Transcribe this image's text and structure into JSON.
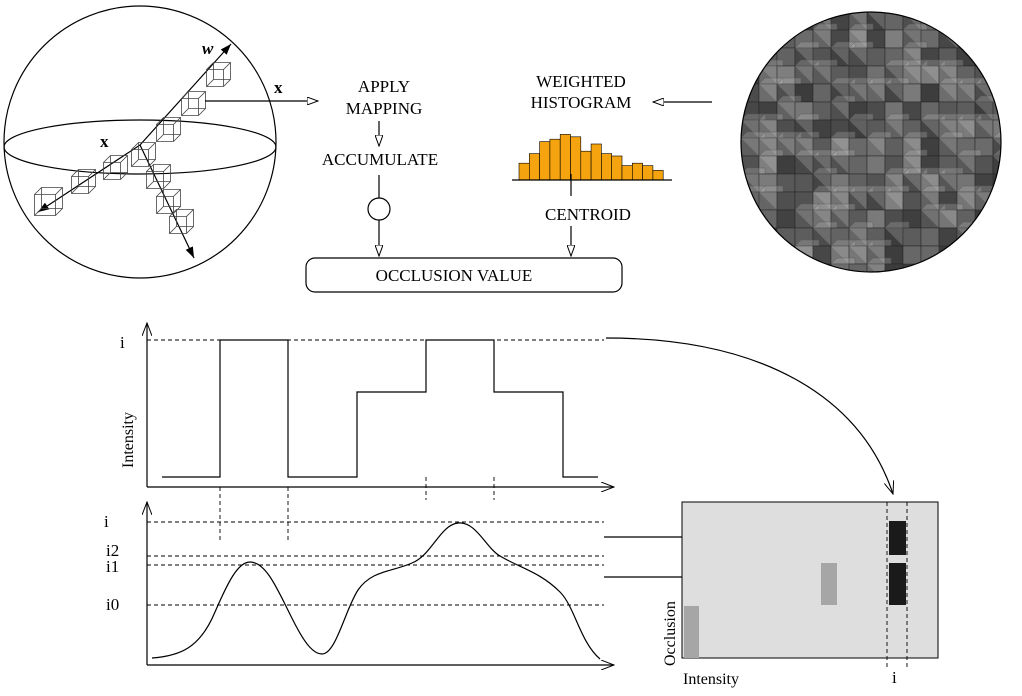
{
  "labels": {
    "w": "w",
    "x_arrow": "x",
    "x_point": "x",
    "apply_mapping_line1": "APPLY",
    "apply_mapping_line2": "MAPPING",
    "accumulate": "ACCUMULATE",
    "weighted_histogram_line1": "WEIGHTED",
    "weighted_histogram_line2": "HISTOGRAM",
    "centroid": "CENTROID",
    "occlusion_value": "OCCLUSION   VALUE"
  },
  "top_profile": {
    "ylabel": "Intensity",
    "level_label": "i"
  },
  "bottom_profile": {
    "level_labels": [
      "i",
      "i2",
      "i1",
      "i0"
    ]
  },
  "occlusion_map": {
    "xlabel": "Intensity",
    "ylabel": "Occlusion",
    "marker_label": "i"
  },
  "histogram": {
    "bar_color": "#F5A30F",
    "bars": [
      0.35,
      0.55,
      0.8,
      0.85,
      0.95,
      0.9,
      0.6,
      0.75,
      0.55,
      0.5,
      0.3,
      0.35,
      0.3,
      0.2
    ]
  },
  "colors": {
    "occlusion_map_bg": "#DEDEDE",
    "occlusion_gray": "#A6A6A6",
    "occlusion_dark": "#1A1A1A",
    "voxel_fill": "#5A5A5A"
  }
}
